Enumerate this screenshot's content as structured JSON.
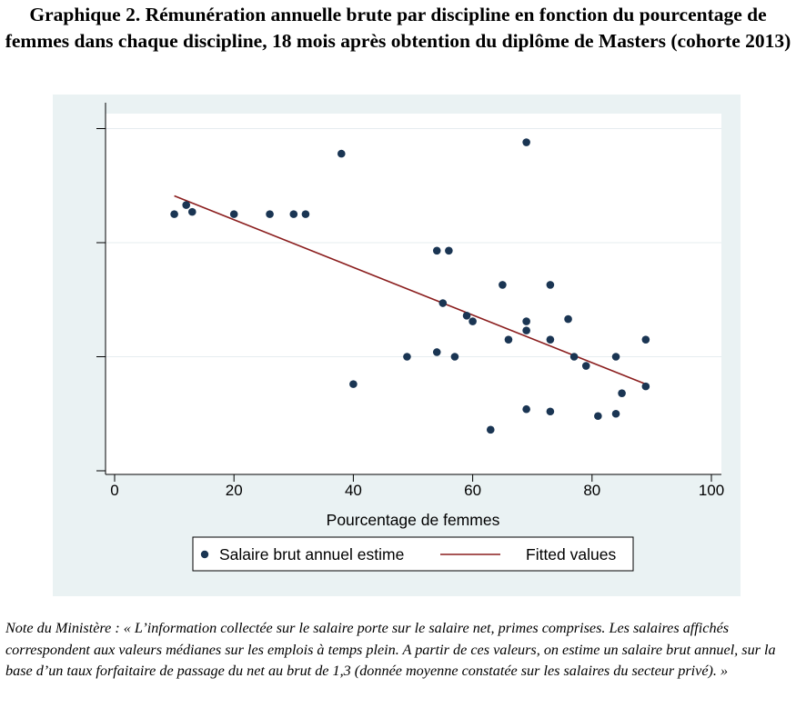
{
  "title": "Graphique 2. Rémunération annuelle brute par discipline en fonction du pourcentage de femmes dans chaque discipline, 18 mois après obtention du diplôme de Masters (cohorte 2013)",
  "note": "Note du Ministère : « L’information collectée sur le salaire porte sur le salaire net, primes comprises. Les salaires affichés correspondent aux valeurs médianes sur les emplois à temps plein. A partir de ces valeurs, on estime un salaire brut annuel, sur la base d’un taux forfaitaire de passage du net au brut de 1,3 (donnée moyenne constatée sur les salaires du secteur privé). »",
  "colors": {
    "background": "#eaf2f3",
    "plot_area": "#ffffff",
    "markers": "#1a3553",
    "fit_line": "#8b1e1e",
    "grid": "#e6ecef"
  },
  "chart_data": {
    "type": "scatter",
    "xlabel": "Pourcentage de femmes",
    "ylabel": "",
    "xlim": [
      0,
      100
    ],
    "ylim": [
      0,
      3
    ],
    "x_ticks": [
      0,
      20,
      40,
      60,
      80,
      100
    ],
    "y_ticks": [
      0,
      1,
      2,
      3
    ],
    "y_tick_labels_shown": false,
    "grid": true,
    "legend_placement": "bottom",
    "series": [
      {
        "name": "Salaire brut annuel estime",
        "kind": "points",
        "points": [
          [
            10,
            2.25
          ],
          [
            12,
            2.33
          ],
          [
            13,
            2.27
          ],
          [
            20,
            2.25
          ],
          [
            26,
            2.25
          ],
          [
            30,
            2.25
          ],
          [
            32,
            2.25
          ],
          [
            38,
            2.78
          ],
          [
            69,
            2.88
          ],
          [
            54,
            1.93
          ],
          [
            56,
            1.93
          ],
          [
            65,
            1.63
          ],
          [
            73,
            1.63
          ],
          [
            55,
            1.47
          ],
          [
            59,
            1.36
          ],
          [
            60,
            1.31
          ],
          [
            69,
            1.31
          ],
          [
            69,
            1.23
          ],
          [
            76,
            1.33
          ],
          [
            66,
            1.15
          ],
          [
            73,
            1.15
          ],
          [
            89,
            1.15
          ],
          [
            49,
            1.0
          ],
          [
            54,
            1.04
          ],
          [
            57,
            1.0
          ],
          [
            77,
            1.0
          ],
          [
            79,
            0.92
          ],
          [
            84,
            1.0
          ],
          [
            40,
            0.76
          ],
          [
            89,
            0.74
          ],
          [
            85,
            0.68
          ],
          [
            69,
            0.54
          ],
          [
            73,
            0.52
          ],
          [
            81,
            0.48
          ],
          [
            84,
            0.5
          ],
          [
            63,
            0.36
          ]
        ]
      },
      {
        "name": "Fitted values",
        "kind": "line",
        "points": [
          [
            10,
            2.41
          ],
          [
            89,
            0.76
          ]
        ]
      }
    ]
  }
}
